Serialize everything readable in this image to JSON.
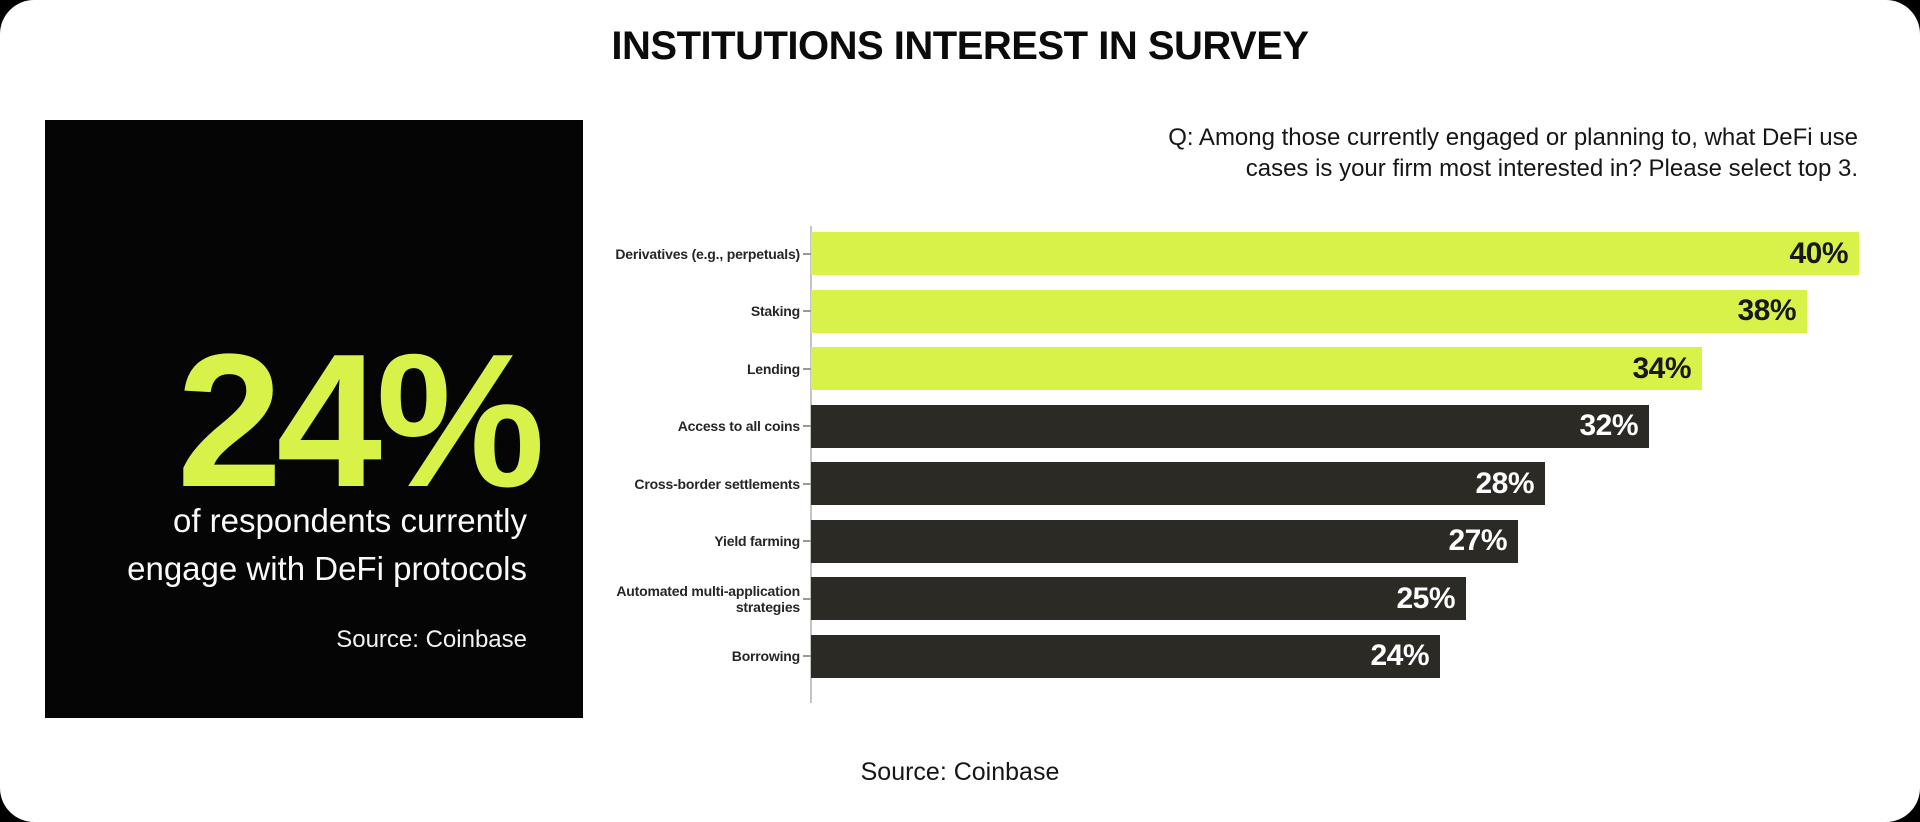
{
  "page": {
    "title": "INSTITUTIONS INTEREST IN SURVEY",
    "footer_source": "Source: Coinbase"
  },
  "stat_box": {
    "value": "24%",
    "description_line1": "of respondents currently",
    "description_line2": "engage with DeFi protocols",
    "source": "Source: Coinbase"
  },
  "question": {
    "line1": "Q: Among those currently engaged or planning to, what DeFi use",
    "line2": "cases is your firm most interested in? Please select top 3."
  },
  "colors": {
    "accent_lime": "#d8f24a",
    "dark_bar": "#2b2a25",
    "stat_box_bg": "#050505",
    "value_label_on_lime": "#181818",
    "value_label_on_dark": "#ffffff",
    "card_bg": "#ffffff",
    "page_bg": "#000000"
  },
  "chart_data": {
    "type": "bar",
    "orientation": "horizontal",
    "title": "",
    "xlabel": "",
    "ylabel": "",
    "categories": [
      "Derivatives (e.g., perpetuals)",
      "Staking",
      "Lending",
      "Access to all coins",
      "Cross-border settlements",
      "Yield farming",
      "Automated multi-application strategies",
      "Borrowing"
    ],
    "values": [
      40,
      38,
      34,
      32,
      28,
      27,
      25,
      24
    ],
    "value_labels": [
      "40%",
      "38%",
      "34%",
      "32%",
      "28%",
      "27%",
      "25%",
      "24%"
    ],
    "highlighted": [
      true,
      true,
      true,
      false,
      false,
      false,
      false,
      false
    ],
    "xlim": [
      0,
      40
    ],
    "grid": false,
    "legend": false
  }
}
